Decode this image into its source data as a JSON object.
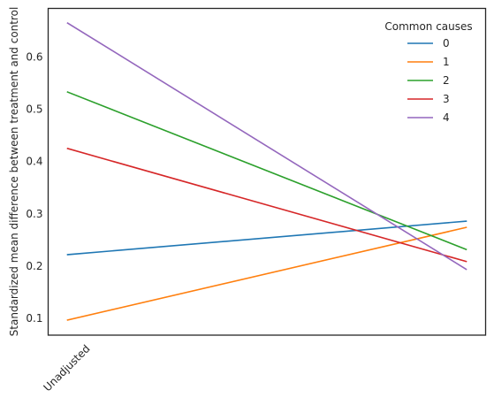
{
  "chart_data": {
    "type": "line",
    "title": "",
    "xlabel": "",
    "ylabel": "Standardized mean difference between treatment and control",
    "categories": [
      "Unadjusted",
      ""
    ],
    "ylim": [
      0.068,
      0.693
    ],
    "y_ticks": [
      "0.1",
      "0.2",
      "0.3",
      "0.4",
      "0.5",
      "0.6"
    ],
    "grid": false,
    "legend": {
      "title": "Common causes",
      "placement": "top-right"
    },
    "series": [
      {
        "name": "0",
        "color": "#1f77b4",
        "values": [
          0.222,
          0.286
        ]
      },
      {
        "name": "1",
        "color": "#ff7f0e",
        "values": [
          0.097,
          0.274
        ]
      },
      {
        "name": "2",
        "color": "#2ca02c",
        "values": [
          0.533,
          0.232
        ]
      },
      {
        "name": "3",
        "color": "#d62728",
        "values": [
          0.425,
          0.209
        ]
      },
      {
        "name": "4",
        "color": "#9467bd",
        "values": [
          0.665,
          0.194
        ]
      }
    ]
  }
}
